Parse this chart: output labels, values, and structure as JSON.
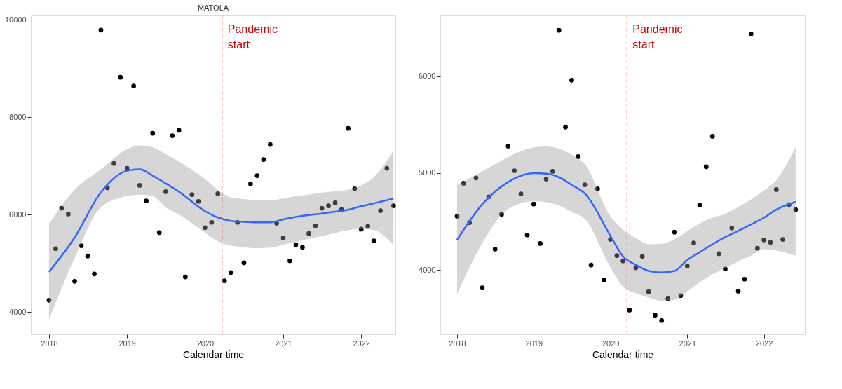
{
  "chart_data": [
    {
      "type": "scatter",
      "title": "MATOLA",
      "xlabel": "Calendar time",
      "xlim": [
        "2017-10-08",
        "2022-06-10"
      ],
      "ylim": [
        3540,
        10090
      ],
      "xticks": [
        "2018",
        "2019",
        "2020",
        "2021",
        "2022"
      ],
      "yticks": [
        4000,
        6000,
        8000,
        10000
      ],
      "grid": false,
      "ref_lines": [
        {
          "axis": "x",
          "value": "2020-03-21",
          "label": "Pandemic start",
          "color": "#f8766d",
          "line_style": "dashed"
        }
      ],
      "series": [
        {
          "color": "#000000",
          "marker": "circle",
          "x": [
            "2018-01",
            "2018-02",
            "2018-03",
            "2018-04",
            "2018-05",
            "2018-06",
            "2018-07",
            "2018-08",
            "2018-09",
            "2018-10",
            "2018-11",
            "2018-12",
            "2019-01",
            "2019-02",
            "2019-03",
            "2019-04",
            "2019-05",
            "2019-06",
            "2019-07",
            "2019-08",
            "2019-09",
            "2019-10",
            "2019-11",
            "2019-12",
            "2020-01",
            "2020-02",
            "2020-03",
            "2020-04",
            "2020-05",
            "2020-06",
            "2020-07",
            "2020-08",
            "2020-09",
            "2020-10",
            "2020-11",
            "2020-12",
            "2021-01",
            "2021-02",
            "2021-03",
            "2021-04",
            "2021-05",
            "2021-06",
            "2021-07",
            "2021-08",
            "2021-09",
            "2021-10",
            "2021-11",
            "2021-12",
            "2022-01",
            "2022-02",
            "2022-03",
            "2022-04",
            "2022-05",
            "2022-06"
          ],
          "values": [
            4240,
            5300,
            6130,
            6010,
            4630,
            5360,
            5150,
            4780,
            9790,
            6550,
            7050,
            8820,
            6950,
            8640,
            6600,
            6280,
            7670,
            5630,
            6470,
            7620,
            7730,
            4720,
            6410,
            6270,
            5730,
            5840,
            6430,
            4640,
            4810,
            5840,
            5010,
            6630,
            6800,
            7130,
            7440,
            5820,
            5520,
            5050,
            5380,
            5330,
            5610,
            5770,
            6130,
            6180,
            6240,
            6100,
            7770,
            6530,
            5700,
            5760,
            5460,
            6080,
            6950,
            6180
          ]
        },
        {
          "type": "line",
          "color": "#3366ff",
          "x": [
            "2018-01",
            "2018-05",
            "2018-09",
            "2019-01",
            "2019-03",
            "2019-05",
            "2019-07",
            "2019-09",
            "2020-01",
            "2020-03",
            "2020-05",
            "2020-07",
            "2020-09",
            "2020-11",
            "2021-01",
            "2021-03",
            "2021-05",
            "2021-07",
            "2021-09",
            "2021-11",
            "2022-01",
            "2022-03",
            "2022-06"
          ],
          "values": [
            4820,
            5530,
            6460,
            6900,
            6930,
            6800,
            6640,
            6470,
            6070,
            5940,
            5870,
            5850,
            5840,
            5840,
            5900,
            5950,
            5990,
            6020,
            6060,
            6100,
            6170,
            6230,
            6330
          ],
          "upper": [
            5810,
            6510,
            6930,
            7340,
            7420,
            7380,
            7240,
            7090,
            6730,
            6510,
            6350,
            6320,
            6300,
            6300,
            6330,
            6380,
            6410,
            6450,
            6480,
            6510,
            6600,
            6770,
            7310
          ],
          "lower": [
            3840,
            5110,
            6150,
            6380,
            6410,
            6380,
            6150,
            6000,
            5630,
            5450,
            5360,
            5330,
            5310,
            5320,
            5380,
            5440,
            5500,
            5560,
            5620,
            5680,
            5700,
            5680,
            5370
          ]
        }
      ]
    },
    {
      "type": "scatter",
      "xlabel": "Calendar time",
      "xlim": [
        "2017-10-13",
        "2022-07-15"
      ],
      "ylim": [
        3335,
        6628
      ],
      "xticks": [
        "2018",
        "2019",
        "2020",
        "2021",
        "2022"
      ],
      "yticks": [
        4000,
        5000,
        6000
      ],
      "grid": false,
      "ref_lines": [
        {
          "axis": "x",
          "value": "2020-03-20",
          "label": "Pandemic start",
          "color": "#f8766d",
          "line_style": "dashed"
        }
      ],
      "series": [
        {
          "color": "#000000",
          "marker": "circle",
          "x": [
            "2018-01",
            "2018-02",
            "2018-03",
            "2018-04",
            "2018-05",
            "2018-06",
            "2018-07",
            "2018-08",
            "2018-09",
            "2018-10",
            "2018-11",
            "2018-12",
            "2019-01",
            "2019-02",
            "2019-03",
            "2019-04",
            "2019-05",
            "2019-06",
            "2019-07",
            "2019-08",
            "2019-09",
            "2019-10",
            "2019-11",
            "2019-12",
            "2020-01",
            "2020-02",
            "2020-03",
            "2020-04",
            "2020-05",
            "2020-06",
            "2020-07",
            "2020-08",
            "2020-09",
            "2020-10",
            "2020-11",
            "2020-12",
            "2021-01",
            "2021-02",
            "2021-03",
            "2021-04",
            "2021-05",
            "2021-06",
            "2021-07",
            "2021-08",
            "2021-09",
            "2021-10",
            "2021-11",
            "2021-12",
            "2022-01",
            "2022-02",
            "2022-03",
            "2022-04",
            "2022-05",
            "2022-06"
          ],
          "values": [
            4555,
            4895,
            4488,
            4950,
            3815,
            4755,
            4215,
            4575,
            5278,
            5025,
            4785,
            4360,
            4680,
            4273,
            4938,
            5018,
            6475,
            5475,
            5960,
            5170,
            4880,
            4050,
            4838,
            3895,
            4315,
            4148,
            4093,
            3585,
            4023,
            4140,
            3775,
            3533,
            3478,
            3703,
            4390,
            3735,
            4040,
            4278,
            4670,
            5065,
            5380,
            4168,
            4010,
            4433,
            3780,
            3905,
            6438,
            4225,
            4310,
            4285,
            4830,
            4315,
            4675,
            4623
          ]
        },
        {
          "type": "line",
          "color": "#3366ff",
          "x": [
            "2018-01",
            "2018-05",
            "2018-09",
            "2019-01",
            "2019-03",
            "2019-05",
            "2019-07",
            "2019-09",
            "2020-01",
            "2020-03",
            "2020-05",
            "2020-07",
            "2020-09",
            "2020-11",
            "2021-01",
            "2021-03",
            "2021-05",
            "2021-07",
            "2021-09",
            "2021-11",
            "2022-01",
            "2022-03",
            "2022-06"
          ],
          "values": [
            4310,
            4678,
            4908,
            5000,
            4995,
            4958,
            4878,
            4790,
            4353,
            4140,
            4053,
            3990,
            3973,
            3990,
            4103,
            4183,
            4265,
            4340,
            4403,
            4470,
            4540,
            4623,
            4703
          ],
          "upper": [
            4878,
            5018,
            5165,
            5265,
            5275,
            5253,
            5190,
            5093,
            4553,
            4415,
            4330,
            4265,
            4270,
            4315,
            4400,
            4478,
            4540,
            4578,
            4650,
            4728,
            4820,
            4928,
            5265
          ],
          "lower": [
            3753,
            4278,
            4628,
            4710,
            4700,
            4665,
            4600,
            4528,
            4028,
            3828,
            3760,
            3715,
            3680,
            3690,
            3778,
            3870,
            3953,
            4020,
            4090,
            4150,
            4215,
            4200,
            4145
          ]
        }
      ]
    }
  ]
}
